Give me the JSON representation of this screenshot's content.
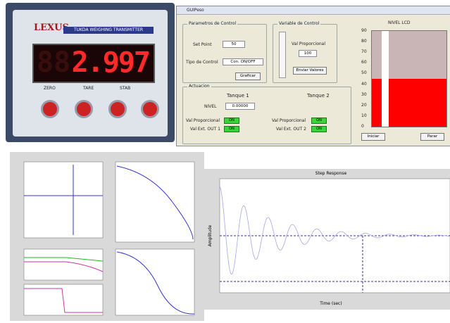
{
  "device": {
    "brand": "LEXUS",
    "model": "TUKDA WEIGHING TRANSMITTER",
    "reading": "2.997",
    "indicators": [
      "ZERO",
      "TARE",
      "STAB"
    ]
  },
  "window": {
    "title": "GUIPeso",
    "control_params": {
      "title": "Parametros de Control",
      "set_point_label": "Set Point",
      "set_point_value": "50",
      "control_type_label": "Tipo de Control",
      "control_type_value": "Con. ON/OFF",
      "button": "Graficar"
    },
    "control_variable": {
      "title": "Variable de Control",
      "label": "Val Proporcional",
      "value": "100",
      "button": "Enviar Valores"
    },
    "actuator": {
      "title": "Actuacion",
      "tank1": "Tanque 1",
      "tank2": "Tanque 2",
      "level_label": "NIVEL",
      "level_value": "0.00000",
      "rows": [
        {
          "label": "Val Proporcional",
          "state": "ON"
        },
        {
          "label": "Val Ext. OUT 1",
          "state": "ON"
        },
        {
          "label": "Val Proporcional",
          "state": "ON"
        },
        {
          "label": "Val Ext. OUT 2",
          "state": "ON"
        }
      ]
    },
    "level": {
      "title": "NIVEL LCD",
      "ticks": [
        "90",
        "80",
        "70",
        "60",
        "50",
        "40",
        "30",
        "20",
        "10",
        "0"
      ],
      "start": "Iniciar",
      "stop": "Parar"
    }
  },
  "plots": {
    "step": {
      "title": "Step Response",
      "xlabel": "Time (sec)",
      "ylabel": "Amplitude"
    }
  }
}
